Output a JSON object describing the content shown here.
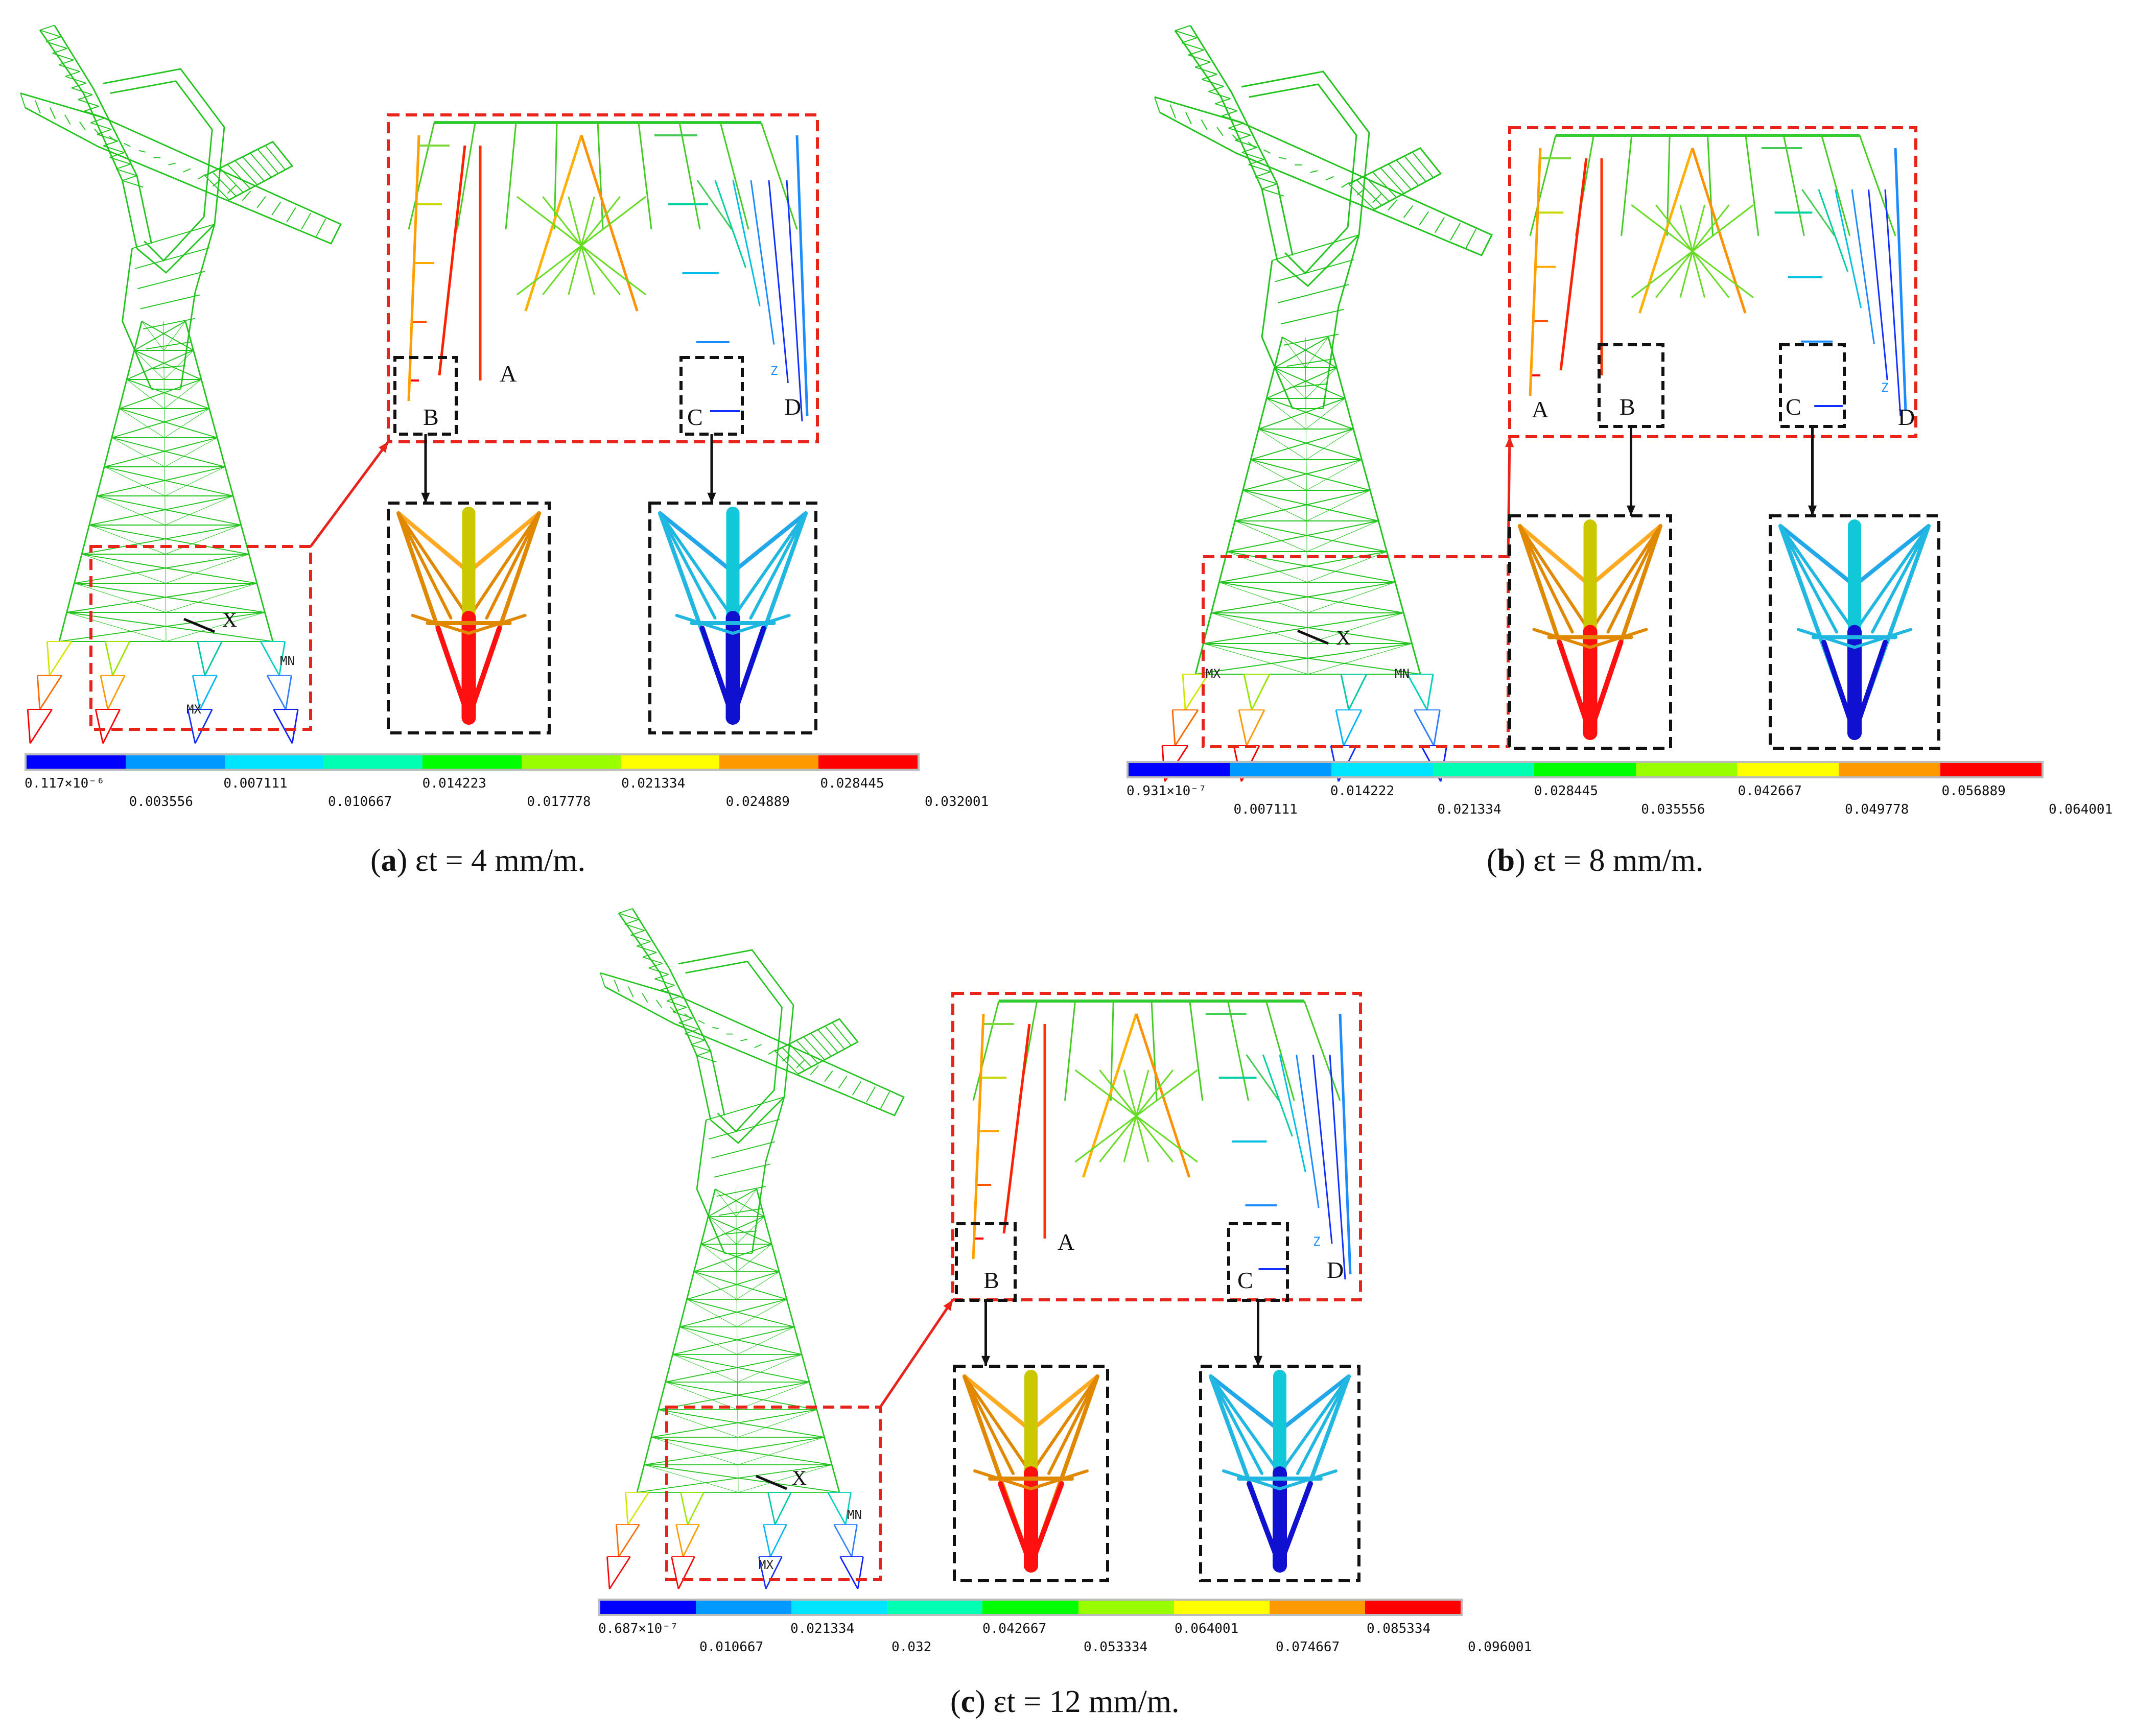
{
  "colorbar_colors": [
    "#0000ff",
    "#0099ff",
    "#00e5ff",
    "#00ffb2",
    "#00ff00",
    "#99ff00",
    "#ffff00",
    "#ff9900",
    "#ff0000"
  ],
  "panels": [
    {
      "id": "a",
      "caption_letter": "a",
      "caption_rest": " εt = 4 mm/m.",
      "colorbar_top": [
        "0.117×10⁻⁶",
        "0.007111",
        "0.014223",
        "0.021334",
        "0.028445"
      ],
      "colorbar_bottom": [
        "0.003556",
        "0.010667",
        "0.017778",
        "0.024889",
        "0.032001"
      ],
      "labels": {
        "A": "A",
        "B": "B",
        "C": "C",
        "D": "D",
        "X": "X",
        "MX": "MX",
        "MN": "MN",
        "Z": "Z"
      }
    },
    {
      "id": "b",
      "caption_letter": "b",
      "caption_rest": " εt = 8 mm/m.",
      "colorbar_top": [
        "0.931×10⁻⁷",
        "0.014222",
        "0.028445",
        "0.042667",
        "0.056889"
      ],
      "colorbar_bottom": [
        "0.007111",
        "0.021334",
        "0.035556",
        "0.049778",
        "0.064001"
      ],
      "labels": {
        "A": "A",
        "B": "B",
        "C": "C",
        "D": "D",
        "X": "X",
        "MX": "MX",
        "MN": "MN",
        "Z": "Z"
      }
    },
    {
      "id": "c",
      "caption_letter": "c",
      "caption_rest": " εt = 12 mm/m.",
      "colorbar_top": [
        "0.687×10⁻⁷",
        "0.021334",
        "0.042667",
        "0.064001",
        "0.085334"
      ],
      "colorbar_bottom": [
        "0.010667",
        "0.032",
        "0.053334",
        "0.074667",
        "0.096001"
      ],
      "labels": {
        "A": "A",
        "B": "B",
        "C": "C",
        "D": "D",
        "X": "X",
        "MX": "MX",
        "MN": "MN",
        "Z": "Z"
      }
    }
  ]
}
